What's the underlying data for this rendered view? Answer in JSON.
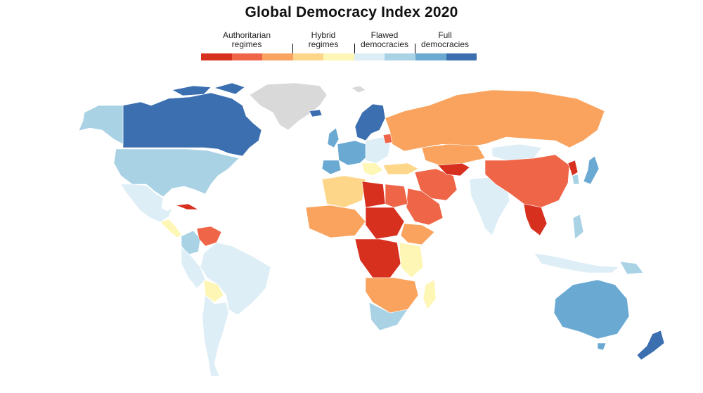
{
  "title": "Global Democracy Index 2020",
  "legend": {
    "categories": [
      {
        "label": "Authoritarian\nregimes"
      },
      {
        "label": "Hybrid\nregimes"
      },
      {
        "label": "Flawed\ndemocracies"
      },
      {
        "label": "Full\ndemocracies"
      }
    ],
    "swatches": [
      "#d7301f",
      "#ef6548",
      "#f9a35e",
      "#fdd68a",
      "#fef6b5",
      "#ddeef6",
      "#a9d2e5",
      "#6aa9d2",
      "#3b6fb0"
    ]
  },
  "colors": {
    "nodata": "#d9d9d9",
    "water": "#ffffff"
  }
}
